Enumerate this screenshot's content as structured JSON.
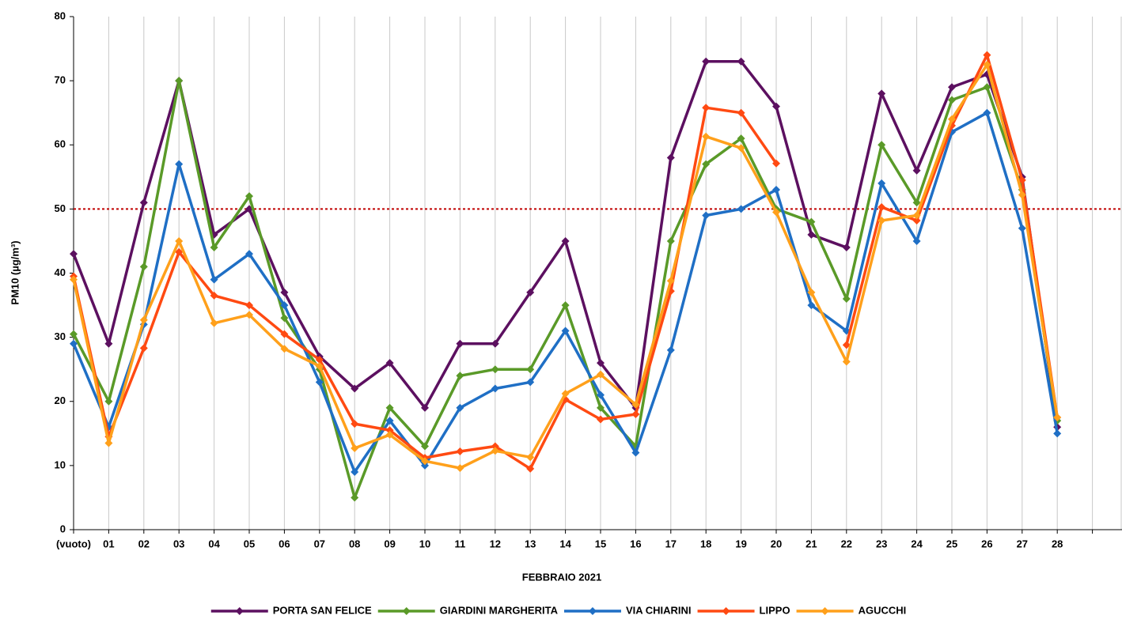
{
  "chart_data": {
    "type": "line",
    "x_label": "FEBBRAIO 2021",
    "y_label": "PM10 (µg/m³)",
    "categories": [
      "(vuoto)",
      "01",
      "02",
      "03",
      "04",
      "05",
      "06",
      "07",
      "08",
      "09",
      "10",
      "11",
      "12",
      "13",
      "14",
      "15",
      "16",
      "17",
      "18",
      "19",
      "20",
      "21",
      "22",
      "23",
      "24",
      "25",
      "26",
      "27",
      "28",
      null
    ],
    "series": [
      {
        "name": "PORTA SAN FELICE",
        "color": "#5c1060",
        "values": [
          43,
          29,
          51,
          70,
          46,
          50,
          37,
          27,
          22,
          26,
          19,
          29,
          29,
          37,
          45,
          26,
          19,
          58,
          73,
          73,
          66,
          46,
          44,
          68,
          56,
          69,
          71,
          55,
          16,
          null
        ]
      },
      {
        "name": "GIARDINI MARGHERITA",
        "color": "#5a9a28",
        "values": [
          30.5,
          20,
          41,
          70,
          44,
          52,
          33,
          25,
          5,
          19,
          13,
          24,
          25,
          25,
          35,
          19,
          13,
          45,
          57,
          61,
          50,
          48,
          36,
          60,
          51,
          67,
          69,
          53,
          17,
          null
        ]
      },
      {
        "name": "VIA CHIARINI",
        "color": "#1f6fc5",
        "values": [
          29,
          16,
          32,
          57,
          39,
          43,
          35,
          23,
          9,
          17,
          10,
          19,
          22,
          23,
          31,
          21,
          12,
          28,
          49,
          50,
          53,
          35,
          31,
          54,
          45,
          62,
          65,
          47,
          15,
          null
        ]
      },
      {
        "name": "LIPPO",
        "color": "#ff4a12",
        "values": [
          39.5,
          14.5,
          28.3,
          43.3,
          36.5,
          35,
          30.5,
          26.5,
          16.5,
          15.5,
          11.2,
          12.2,
          13,
          9.5,
          20.3,
          17.2,
          18,
          37.2,
          65.8,
          65,
          57.1,
          null,
          28.8,
          50.3,
          48.2,
          63,
          74,
          54.5,
          17.5,
          null
        ]
      },
      {
        "name": "AGUCCHI",
        "color": "#ffa01b",
        "values": [
          39,
          13.5,
          32.7,
          45,
          32.2,
          33.5,
          28.2,
          25.5,
          12.7,
          14.8,
          10.7,
          9.6,
          12.3,
          11.3,
          21.2,
          24.2,
          19.5,
          38.8,
          61.3,
          59.5,
          49.5,
          37,
          26.2,
          48.2,
          49,
          64,
          72.5,
          52.2,
          17.5,
          null
        ]
      }
    ],
    "reference_line": {
      "value": 50,
      "color": "#c00000"
    },
    "ylim": [
      0,
      80
    ],
    "yticks": [
      0,
      10,
      20,
      30,
      40,
      50,
      60,
      70,
      80
    ],
    "grid": true,
    "legend": "bottom"
  }
}
